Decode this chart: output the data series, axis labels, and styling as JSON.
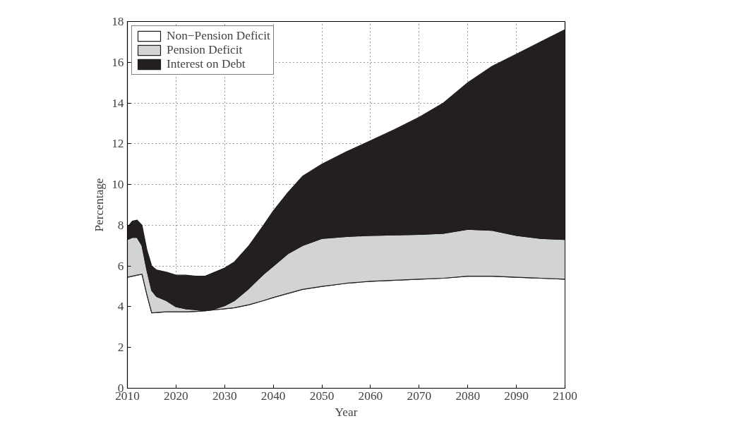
{
  "chart_data": {
    "type": "area",
    "stacked": true,
    "xlabel": "Year",
    "ylabel": "Percentage",
    "x": [
      2010,
      2011,
      2012,
      2013,
      2014,
      2015,
      2016,
      2018,
      2020,
      2022,
      2024,
      2026,
      2028,
      2030,
      2032,
      2035,
      2038,
      2040,
      2043,
      2046,
      2050,
      2055,
      2060,
      2065,
      2070,
      2075,
      2080,
      2085,
      2090,
      2095,
      2100
    ],
    "series": [
      {
        "name": "Non−Pension Deficit",
        "color": "#ffffff",
        "values": [
          5.45,
          5.5,
          5.55,
          5.6,
          4.6,
          3.7,
          3.72,
          3.75,
          3.75,
          3.75,
          3.77,
          3.8,
          3.85,
          3.9,
          3.95,
          4.1,
          4.3,
          4.45,
          4.65,
          4.85,
          5.0,
          5.15,
          5.25,
          5.3,
          5.35,
          5.4,
          5.5,
          5.5,
          5.45,
          5.4,
          5.35
        ]
      },
      {
        "name": "Pension Deficit",
        "color": "#d1d3d4",
        "values": [
          1.85,
          1.9,
          1.85,
          1.4,
          1.2,
          1.1,
          0.78,
          0.55,
          0.25,
          0.15,
          0.08,
          0,
          0.05,
          0.15,
          0.35,
          0.8,
          1.3,
          1.55,
          1.95,
          2.15,
          2.35,
          2.3,
          2.25,
          2.22,
          2.2,
          2.2,
          2.3,
          2.25,
          2.05,
          1.95,
          1.95
        ]
      },
      {
        "name": "Interest on Debt",
        "color": "#231f20",
        "values": [
          0.6,
          0.8,
          0.85,
          1.0,
          1.0,
          1.2,
          1.3,
          1.4,
          1.55,
          1.65,
          1.65,
          1.7,
          1.8,
          1.85,
          1.9,
          2.1,
          2.4,
          2.7,
          3.0,
          3.4,
          3.65,
          4.15,
          4.65,
          5.18,
          5.75,
          6.4,
          7.2,
          8.05,
          8.9,
          9.65,
          10.3
        ]
      }
    ],
    "xlim": [
      2010,
      2100
    ],
    "xticks": [
      2010,
      2020,
      2030,
      2040,
      2050,
      2060,
      2070,
      2080,
      2090,
      2100
    ],
    "ylim": [
      0,
      18
    ],
    "yticks": [
      0,
      2,
      4,
      6,
      8,
      10,
      12,
      14,
      16,
      18
    ],
    "grid": true,
    "legend": "top left"
  }
}
